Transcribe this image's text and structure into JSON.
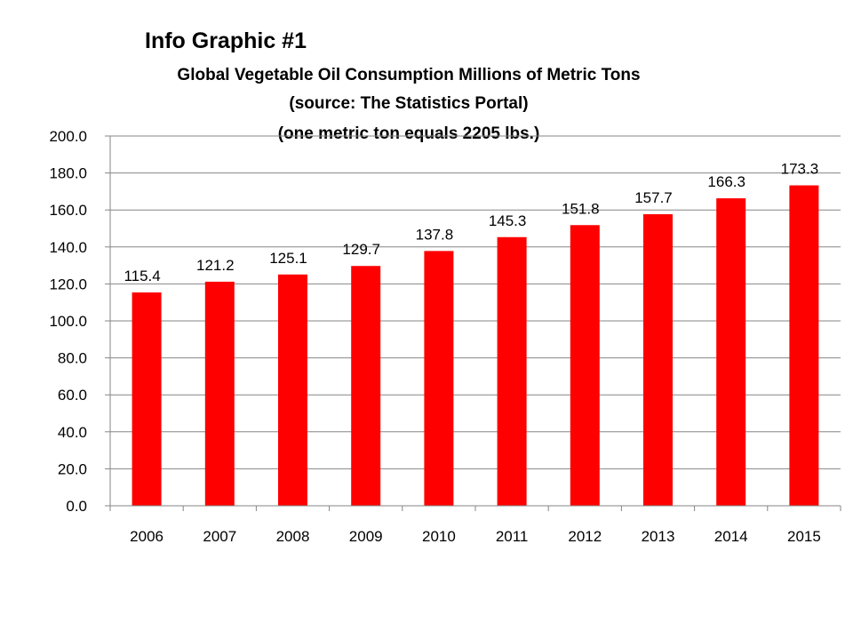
{
  "header": {
    "heading": "Info Graphic #1",
    "title_lines": [
      "Global Vegetable Oil Consumption Millions of Metric Tons",
      "(source: The Statistics Portal)",
      "(one metric ton equals 2205 lbs.)"
    ]
  },
  "colors": {
    "bar": "#ff0000",
    "grid": "#868686",
    "axis": "#868686"
  },
  "chart_data": {
    "type": "bar",
    "title": "Global Vegetable Oil Consumption Millions of Metric Tons",
    "categories": [
      "2006",
      "2007",
      "2008",
      "2009",
      "2010",
      "2011",
      "2012",
      "2013",
      "2014",
      "2015"
    ],
    "values": [
      115.4,
      121.2,
      125.1,
      129.7,
      137.8,
      145.3,
      151.8,
      157.7,
      166.3,
      173.3
    ],
    "value_labels": [
      "115.4",
      "121.2",
      "125.1",
      "129.7",
      "137.8",
      "145.3",
      "151.8",
      "157.7",
      "166.3",
      "173.3"
    ],
    "xlabel": "",
    "ylabel": "",
    "ylim": [
      0,
      200
    ],
    "yticks": [
      "0.0",
      "20.0",
      "40.0",
      "60.0",
      "80.0",
      "100.0",
      "120.0",
      "140.0",
      "160.0",
      "180.0",
      "200.0"
    ],
    "grid": true,
    "legend": "none"
  }
}
